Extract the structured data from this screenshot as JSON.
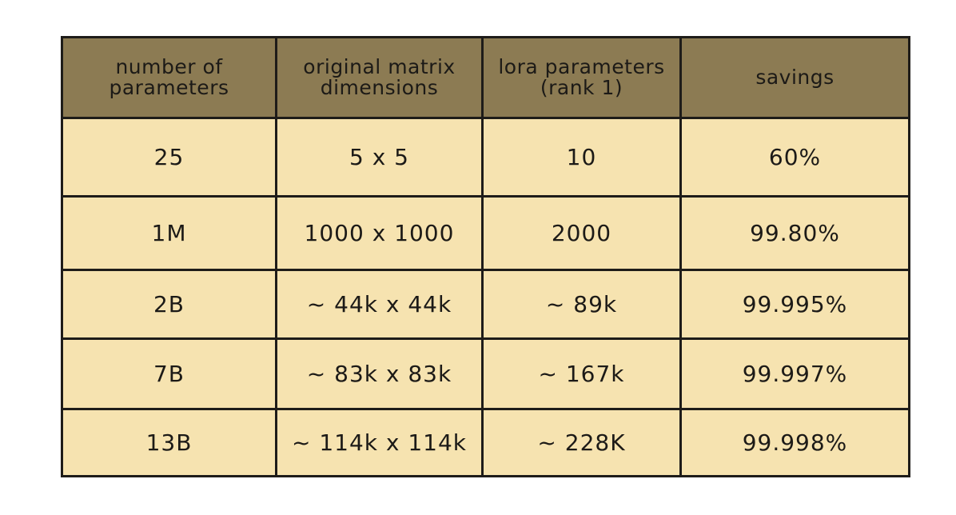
{
  "table": {
    "headers": [
      {
        "line1": "number of",
        "line2": "parameters"
      },
      {
        "line1": "original matrix",
        "line2": "dimensions"
      },
      {
        "line1": "lora parameters",
        "line2": "(rank 1)"
      },
      {
        "line1": "savings",
        "line2": ""
      }
    ],
    "rows": [
      {
        "params": "25",
        "dims": "5 x 5",
        "lora": "10",
        "savings": "60%"
      },
      {
        "params": "1M",
        "dims": "1000 x 1000",
        "lora": "2000",
        "savings": "99.80%"
      },
      {
        "params": "2B",
        "dims": "~ 44k x 44k",
        "lora": "~ 89k",
        "savings": "99.995%"
      },
      {
        "params": "7B",
        "dims": "~ 83k x 83k",
        "lora": "~ 167k",
        "savings": "99.997%"
      },
      {
        "params": "13B",
        "dims": "~ 114k x 114k",
        "lora": "~ 228K",
        "savings": "99.998%"
      }
    ]
  },
  "colors": {
    "header_bg": "#8c7b53",
    "cell_bg": "#f6e3b0",
    "border": "#1e1c19"
  }
}
